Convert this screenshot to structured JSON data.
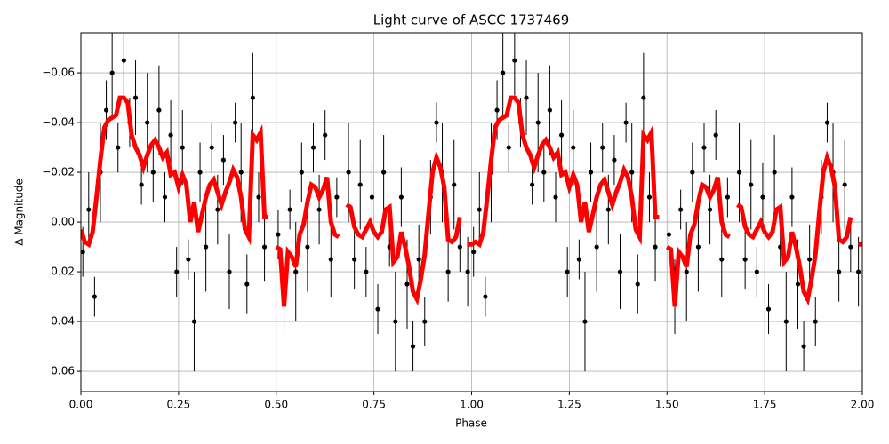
{
  "chart_data": {
    "type": "line",
    "title": "Light curve of ASCC 1737469",
    "x_label": "Phase",
    "y_label": "Δ Magnitude",
    "xlim": [
      0,
      2
    ],
    "ylim": [
      0.0682,
      -0.0761
    ],
    "xticks": [
      {
        "value": 0,
        "label": "0.00"
      },
      0.25,
      {
        "value": 0.5,
        "label": "0.50"
      },
      0.75,
      {
        "value": 1,
        "label": "1.00"
      },
      1.25,
      {
        "value": 1.5,
        "label": "1.50"
      },
      1.75,
      {
        "value": 2,
        "label": "2.00"
      }
    ],
    "yticks": [
      {
        "value": -0.06,
        "label": "−0.06"
      },
      {
        "value": -0.04,
        "label": "−0.04"
      },
      {
        "value": -0.02,
        "label": "−0.02"
      },
      {
        "value": 0,
        "label": "0.00"
      },
      0.02,
      0.04,
      0.06
    ],
    "grid": true,
    "series": [
      {
        "type": "errorbar",
        "color": "#000000",
        "x": [
          0.005,
          0.02,
          0.035,
          0.05,
          0.065,
          0.08,
          0.095,
          0.11,
          0.125,
          0.14,
          0.155,
          0.17,
          0.185,
          0.2,
          0.215,
          0.23,
          0.245,
          0.26,
          0.275,
          0.29,
          0.305,
          0.32,
          0.335,
          0.35,
          0.365,
          0.38,
          0.395,
          0.41,
          0.425,
          0.44,
          0.455,
          0.47,
          0.505,
          0.52,
          0.535,
          0.55,
          0.565,
          0.58,
          0.595,
          0.61,
          0.625,
          0.64,
          0.655,
          0.685,
          0.7,
          0.715,
          0.73,
          0.745,
          0.76,
          0.775,
          0.79,
          0.805,
          0.82,
          0.835,
          0.85,
          0.865,
          0.88,
          0.895,
          0.91,
          0.925,
          0.94,
          0.955,
          0.97,
          0.99,
          1.005,
          1.02,
          1.035,
          1.05,
          1.065,
          1.08,
          1.095,
          1.11,
          1.125,
          1.14,
          1.155,
          1.17,
          1.185,
          1.2,
          1.215,
          1.23,
          1.245,
          1.26,
          1.275,
          1.29,
          1.305,
          1.32,
          1.335,
          1.35,
          1.365,
          1.38,
          1.395,
          1.41,
          1.425,
          1.44,
          1.455,
          1.47,
          1.505,
          1.52,
          1.535,
          1.55,
          1.565,
          1.58,
          1.595,
          1.61,
          1.625,
          1.64,
          1.655,
          1.685,
          1.7,
          1.715,
          1.73,
          1.745,
          1.76,
          1.775,
          1.79,
          1.805,
          1.82,
          1.835,
          1.85,
          1.865,
          1.88,
          1.895,
          1.91,
          1.925,
          1.94,
          1.955,
          1.97,
          1.99
        ],
        "values": [
          0.012,
          -0.005,
          0.03,
          -0.02,
          -0.045,
          -0.06,
          -0.03,
          -0.065,
          -0.04,
          -0.05,
          -0.015,
          -0.04,
          -0.02,
          -0.045,
          -0.01,
          -0.035,
          0.02,
          -0.03,
          0.015,
          0.04,
          -0.02,
          0.01,
          -0.03,
          -0.005,
          -0.025,
          0.02,
          -0.04,
          -0.02,
          0.025,
          -0.05,
          -0.01,
          0.01,
          0.005,
          0.03,
          -0.005,
          0.02,
          -0.02,
          0.01,
          -0.03,
          -0.005,
          -0.035,
          0.015,
          -0.01,
          -0.02,
          0.015,
          -0.015,
          0.02,
          -0.01,
          0.035,
          -0.02,
          0.01,
          0.04,
          -0.01,
          0.025,
          0.05,
          0.015,
          0.04,
          -0.01,
          -0.04,
          -0.02,
          0.02,
          -0.015,
          0.01,
          0.02,
          0.012,
          -0.005,
          0.03,
          -0.02,
          -0.045,
          -0.06,
          -0.03,
          -0.065,
          -0.04,
          -0.05,
          -0.015,
          -0.04,
          -0.02,
          -0.045,
          -0.01,
          -0.035,
          0.02,
          -0.03,
          0.015,
          0.04,
          -0.02,
          0.01,
          -0.03,
          -0.005,
          -0.025,
          0.02,
          -0.04,
          -0.02,
          0.025,
          -0.05,
          -0.01,
          0.01,
          0.005,
          0.03,
          -0.005,
          0.02,
          -0.02,
          0.01,
          -0.03,
          -0.005,
          -0.035,
          0.015,
          -0.01,
          -0.02,
          0.015,
          -0.015,
          0.02,
          -0.01,
          0.035,
          -0.02,
          0.01,
          0.04,
          -0.01,
          0.025,
          0.05,
          0.015,
          0.04,
          -0.01,
          -0.04,
          -0.02,
          0.02,
          -0.015,
          0.01,
          0.02
        ],
        "errors": [
          0.01,
          0.015,
          0.008,
          0.02,
          0.012,
          0.018,
          0.01,
          0.014,
          0.01,
          0.015,
          0.008,
          0.02,
          0.012,
          0.018,
          0.01,
          0.014,
          0.01,
          0.015,
          0.008,
          0.02,
          0.012,
          0.018,
          0.01,
          0.014,
          0.01,
          0.015,
          0.008,
          0.02,
          0.012,
          0.018,
          0.01,
          0.014,
          0.01,
          0.015,
          0.008,
          0.02,
          0.012,
          0.018,
          0.01,
          0.014,
          0.01,
          0.015,
          0.008,
          0.02,
          0.012,
          0.018,
          0.01,
          0.014,
          0.01,
          0.015,
          0.008,
          0.02,
          0.012,
          0.018,
          0.01,
          0.014,
          0.01,
          0.015,
          0.008,
          0.02,
          0.012,
          0.018,
          0.01,
          0.014,
          0.01,
          0.015,
          0.008,
          0.02,
          0.012,
          0.018,
          0.01,
          0.014,
          0.01,
          0.015,
          0.008,
          0.02,
          0.012,
          0.018,
          0.01,
          0.014,
          0.01,
          0.015,
          0.008,
          0.02,
          0.012,
          0.018,
          0.01,
          0.014,
          0.01,
          0.015,
          0.008,
          0.02,
          0.012,
          0.018,
          0.01,
          0.014,
          0.01,
          0.015,
          0.008,
          0.02,
          0.012,
          0.018,
          0.01,
          0.014,
          0.01,
          0.015,
          0.008,
          0.02,
          0.012,
          0.018,
          0.01,
          0.014,
          0.01,
          0.015,
          0.008,
          0.02,
          0.012,
          0.018,
          0.01,
          0.014,
          0.01,
          0.015,
          0.008,
          0.02,
          0.012,
          0.018,
          0.01,
          0.014
        ]
      },
      {
        "type": "line",
        "color": "#ff0000",
        "x": [
          0,
          0.01,
          0.02,
          0.03,
          0.04,
          0.05,
          0.06,
          0.07,
          0.08,
          0.09,
          0.1,
          0.11,
          0.12,
          0.13,
          0.14,
          0.15,
          0.16,
          0.17,
          0.18,
          0.19,
          0.2,
          0.21,
          0.22,
          0.23,
          0.24,
          0.25,
          0.26,
          0.27,
          0.28,
          0.29,
          0.3,
          0.31,
          0.32,
          0.33,
          0.34,
          0.35,
          0.36,
          0.37,
          0.38,
          0.39,
          0.4,
          0.41,
          0.42,
          0.43,
          0.44,
          0.45,
          0.46,
          0.47,
          0.48,
          0.49,
          0.5,
          0.51,
          0.52,
          0.53,
          0.54,
          0.55,
          0.56,
          0.57,
          0.58,
          0.59,
          0.6,
          0.61,
          0.62,
          0.63,
          0.64,
          0.65,
          0.66,
          0.67,
          0.68,
          0.69,
          0.7,
          0.71,
          0.72,
          0.73,
          0.74,
          0.75,
          0.76,
          0.77,
          0.78,
          0.79,
          0.8,
          0.81,
          0.82,
          0.83,
          0.84,
          0.85,
          0.86,
          0.87,
          0.88,
          0.89,
          0.9,
          0.91,
          0.92,
          0.93,
          0.94,
          0.95,
          0.96,
          0.97,
          0.98,
          0.99,
          1,
          1.01,
          1.02,
          1.03,
          1.04,
          1.05,
          1.06,
          1.07,
          1.08,
          1.09,
          1.1,
          1.11,
          1.12,
          1.13,
          1.14,
          1.15,
          1.16,
          1.17,
          1.18,
          1.19,
          1.2,
          1.21,
          1.22,
          1.23,
          1.24,
          1.25,
          1.26,
          1.27,
          1.28,
          1.29,
          1.3,
          1.31,
          1.32,
          1.33,
          1.34,
          1.35,
          1.36,
          1.37,
          1.38,
          1.39,
          1.4,
          1.41,
          1.42,
          1.43,
          1.44,
          1.45,
          1.46,
          1.47,
          1.48,
          1.49,
          1.5,
          1.51,
          1.52,
          1.53,
          1.54,
          1.55,
          1.56,
          1.57,
          1.58,
          1.59,
          1.6,
          1.61,
          1.62,
          1.63,
          1.64,
          1.65,
          1.66,
          1.67,
          1.68,
          1.69,
          1.7,
          1.71,
          1.72,
          1.73,
          1.74,
          1.75,
          1.76,
          1.77,
          1.78,
          1.79,
          1.8,
          1.81,
          1.82,
          1.83,
          1.84,
          1.85,
          1.86,
          1.87,
          1.88,
          1.89,
          1.9,
          1.91,
          1.92,
          1.93,
          1.94,
          1.95,
          1.96,
          1.97,
          1.98,
          1.99,
          2
        ],
        "values": [
          0.003,
          0.008,
          0.009,
          0.004,
          -0.01,
          -0.025,
          -0.038,
          -0.041,
          -0.042,
          -0.043,
          -0.05,
          -0.05,
          -0.048,
          -0.035,
          -0.03,
          -0.027,
          -0.022,
          -0.027,
          -0.031,
          -0.033,
          -0.03,
          -0.026,
          -0.028,
          -0.019,
          -0.02,
          -0.014,
          -0.019,
          -0.015,
          0.0,
          -0.008,
          0.004,
          -0.003,
          -0.01,
          -0.015,
          -0.017,
          -0.012,
          -0.007,
          -0.012,
          -0.016,
          -0.021,
          -0.018,
          -0.01,
          0.003,
          0.006,
          -0.035,
          -0.033,
          -0.036,
          -0.002,
          -0.002,
          null,
          0.01,
          0.011,
          0.034,
          0.012,
          0.014,
          0.018,
          0.005,
          0.001,
          -0.008,
          -0.015,
          -0.014,
          -0.01,
          -0.013,
          -0.018,
          0.0,
          0.005,
          0.006,
          null,
          -0.007,
          -0.006,
          0.002,
          0.005,
          0.006,
          0.003,
          0.0,
          0.004,
          0.006,
          0.004,
          -0.005,
          -0.006,
          0.016,
          0.014,
          0.004,
          0.01,
          0.018,
          0.028,
          0.031,
          0.023,
          0.013,
          -0.004,
          -0.02,
          -0.026,
          -0.022,
          -0.014,
          0.007,
          0.008,
          0.006,
          -0.002,
          null,
          0.009,
          0.009,
          0.008,
          0.009,
          0.004,
          -0.01,
          -0.025,
          -0.038,
          -0.041,
          -0.042,
          -0.043,
          -0.05,
          -0.05,
          -0.048,
          -0.035,
          -0.03,
          -0.027,
          -0.022,
          -0.027,
          -0.031,
          -0.033,
          -0.03,
          -0.026,
          -0.028,
          -0.019,
          -0.02,
          -0.014,
          -0.019,
          -0.015,
          0.0,
          -0.008,
          0.004,
          -0.003,
          -0.01,
          -0.015,
          -0.017,
          -0.012,
          -0.007,
          -0.012,
          -0.016,
          -0.021,
          -0.018,
          -0.01,
          0.003,
          0.006,
          -0.035,
          -0.033,
          -0.036,
          -0.002,
          -0.002,
          null,
          0.01,
          0.011,
          0.034,
          0.012,
          0.014,
          0.018,
          0.005,
          0.001,
          -0.008,
          -0.015,
          -0.014,
          -0.01,
          -0.013,
          -0.018,
          0.0,
          0.005,
          0.006,
          null,
          -0.007,
          -0.006,
          0.002,
          0.005,
          0.006,
          0.003,
          0.0,
          0.004,
          0.006,
          0.004,
          -0.005,
          -0.006,
          0.016,
          0.014,
          0.004,
          0.01,
          0.018,
          0.028,
          0.031,
          0.023,
          0.013,
          -0.004,
          -0.02,
          -0.026,
          -0.022,
          -0.014,
          0.007,
          0.008,
          0.006,
          -0.002,
          null,
          0.009,
          0.009
        ]
      }
    ]
  }
}
